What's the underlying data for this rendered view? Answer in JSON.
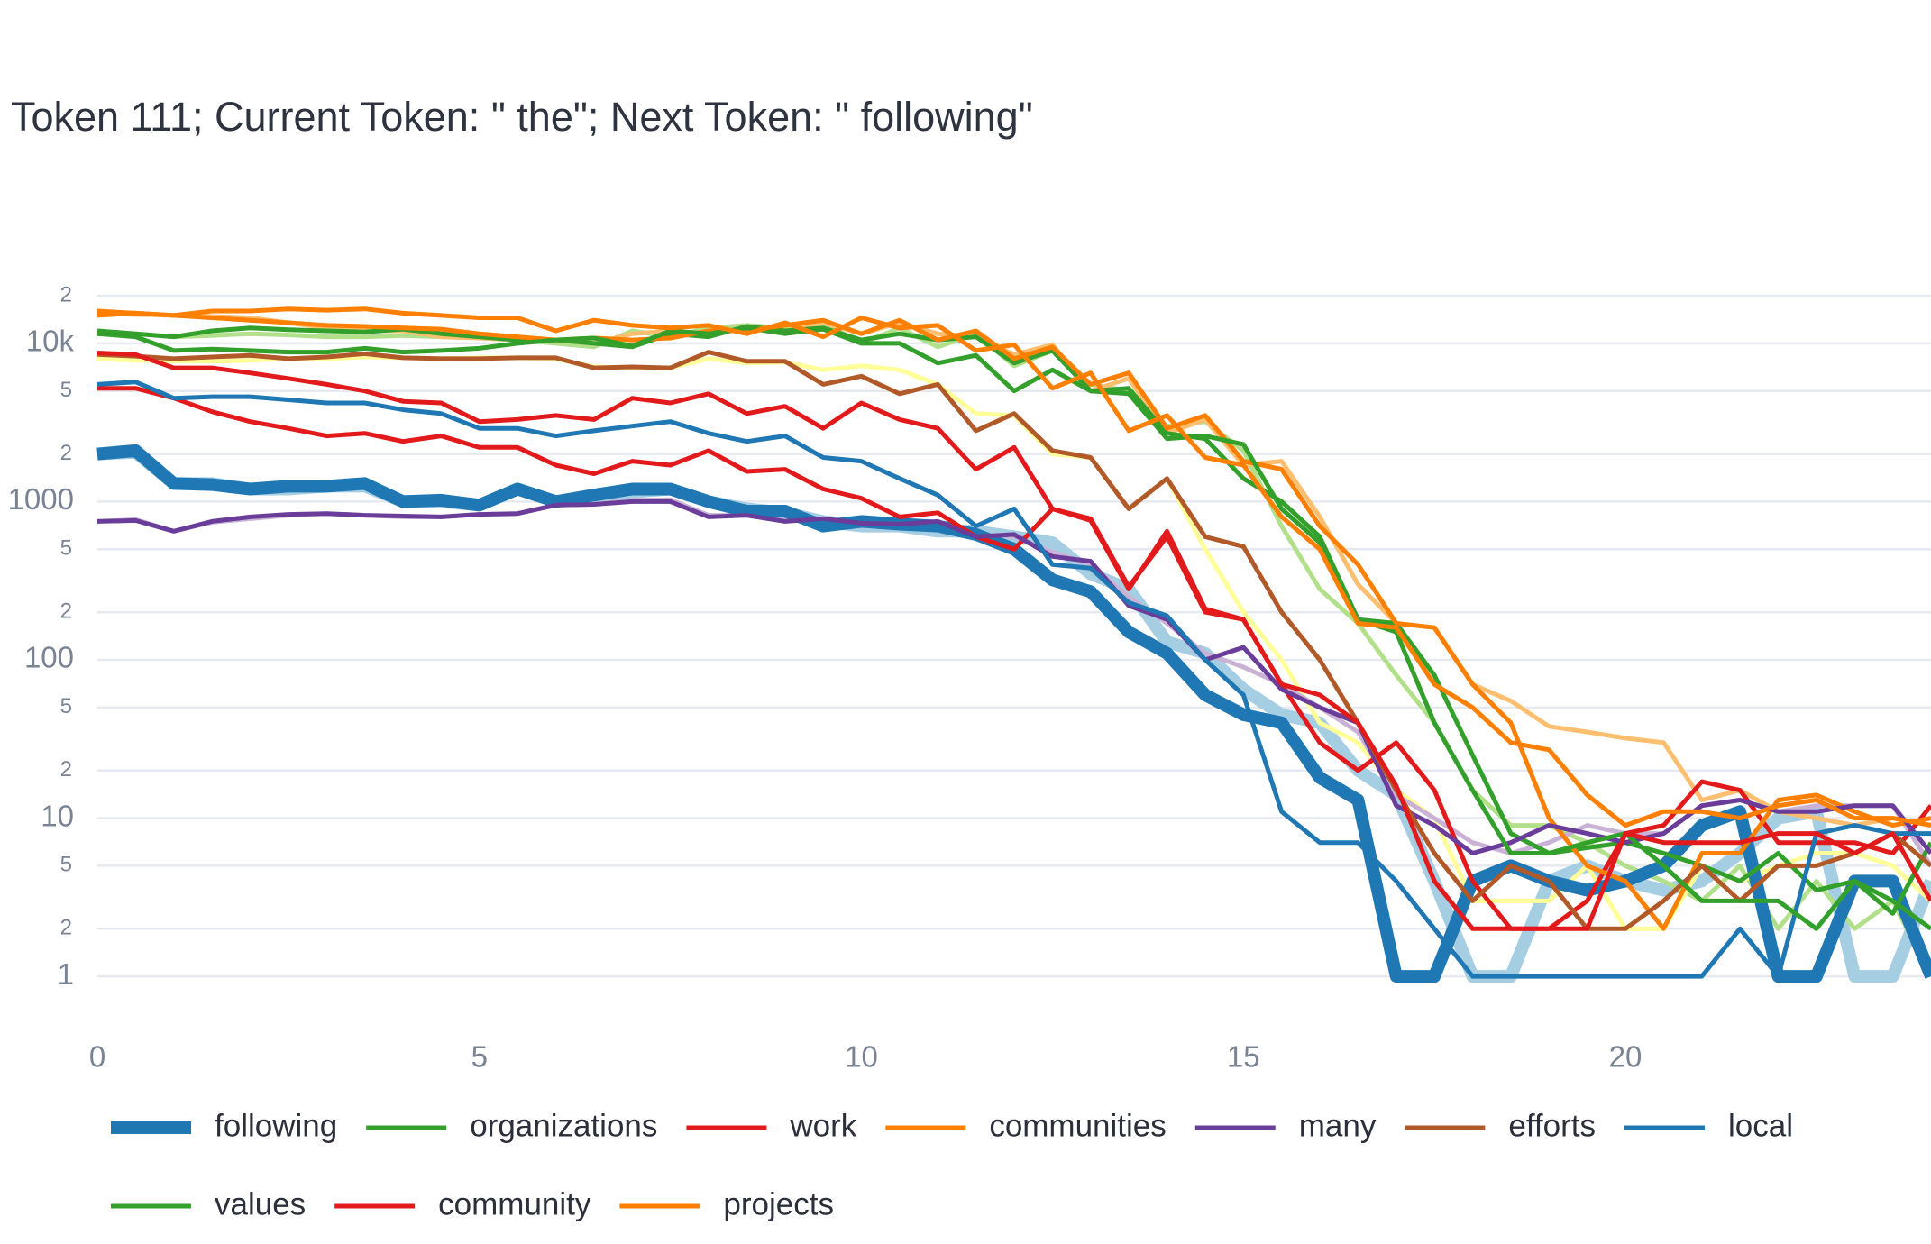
{
  "chart_data": {
    "type": "line",
    "title": "Token 111; Current Token: \" the\"; Next Token: \" following\"",
    "log_y": true,
    "grid": true,
    "xlim": [
      0,
      24
    ],
    "xticks": [
      0,
      5,
      10,
      15,
      20
    ],
    "ylim": [
      0.45,
      25000
    ],
    "yticks": [
      1,
      2,
      5,
      10,
      {
        "value": 20,
        "label": "2"
      },
      {
        "value": 50,
        "label": "5"
      },
      100,
      {
        "value": 200,
        "label": "2"
      },
      {
        "value": 500,
        "label": "5"
      },
      1000,
      {
        "value": 2000,
        "label": "2"
      },
      {
        "value": 5000,
        "label": "5"
      },
      {
        "value": 10000,
        "label": "10k"
      },
      {
        "value": 20000,
        "label": "2"
      }
    ],
    "x": [
      0,
      0.5,
      1,
      1.5,
      2,
      2.5,
      3,
      3.5,
      4,
      4.5,
      5,
      5.5,
      6,
      6.5,
      7,
      7.5,
      8,
      8.5,
      9,
      9.5,
      10,
      10.5,
      11,
      11.5,
      12,
      12.5,
      13,
      13.5,
      14,
      14.5,
      15,
      15.5,
      16,
      16.5,
      17,
      17.5,
      18,
      18.5,
      19,
      19.5,
      20,
      20.5,
      21,
      21.5,
      22,
      22.5,
      23,
      23.5,
      24
    ],
    "series": [
      {
        "color": "#a6cee3",
        "emphasis": true,
        "values": [
          2000,
          2050,
          1300,
          1300,
          1200,
          1200,
          1250,
          1250,
          1000,
          1000,
          950,
          1200,
          1000,
          1050,
          1150,
          1200,
          1000,
          900,
          850,
          750,
          700,
          700,
          650,
          650,
          600,
          550,
          350,
          280,
          130,
          110,
          65,
          45,
          40,
          20,
          14,
          4,
          1,
          1,
          4,
          5,
          4,
          3.5,
          4,
          6,
          10,
          11,
          1,
          1,
          4
        ]
      },
      {
        "color": "#b2df8a",
        "values": [
          11500,
          11500,
          11000,
          11200,
          11500,
          11300,
          11000,
          11000,
          11200,
          11000,
          10800,
          10500,
          10000,
          9500,
          12000,
          11000,
          12500,
          13000,
          12500,
          13500,
          10000,
          12500,
          9500,
          11500,
          7200,
          9000,
          5500,
          5000,
          3000,
          3200,
          2100,
          700,
          280,
          170,
          80,
          40,
          15,
          9,
          9,
          7,
          5,
          4,
          3,
          5,
          2,
          4,
          2,
          3,
          1
        ]
      },
      {
        "color": "#fdbf6f",
        "values": [
          15500,
          15200,
          15000,
          14800,
          14500,
          13500,
          12500,
          12000,
          12000,
          11000,
          10800,
          10500,
          10500,
          10000,
          11500,
          12000,
          11500,
          12500,
          12000,
          13500,
          11500,
          13500,
          11500,
          11000,
          8500,
          9800,
          5000,
          6000,
          2700,
          3300,
          1700,
          1800,
          800,
          300,
          170,
          160,
          70,
          55,
          38,
          35,
          32,
          30,
          13,
          15,
          11,
          10,
          9,
          10,
          9
        ]
      },
      {
        "color": "#ffff99",
        "values": [
          8000,
          7800,
          7700,
          7700,
          7800,
          8000,
          8000,
          8200,
          8100,
          8000,
          8100,
          8100,
          8000,
          7100,
          7000,
          7000,
          8000,
          7500,
          7600,
          6800,
          7200,
          6800,
          5500,
          3600,
          3500,
          2000,
          1900,
          900,
          1400,
          500,
          200,
          100,
          40,
          30,
          15,
          10,
          3,
          3,
          3,
          5,
          2,
          2,
          5,
          4,
          5,
          6,
          6,
          5,
          3
        ]
      },
      {
        "color": "#cab2d6",
        "values": [
          750,
          770,
          650,
          740,
          780,
          820,
          840,
          820,
          800,
          800,
          830,
          840,
          950,
          960,
          1020,
          1030,
          820,
          820,
          760,
          780,
          720,
          700,
          700,
          620,
          600,
          480,
          400,
          250,
          170,
          110,
          90,
          70,
          50,
          35,
          14,
          10,
          7,
          6,
          7,
          9,
          8,
          8,
          12,
          13,
          11,
          12,
          12,
          12,
          5
        ]
      },
      {
        "name": "following",
        "color": "#1f78b4",
        "emphasis": true,
        "values": [
          2000,
          2100,
          1300,
          1280,
          1200,
          1250,
          1250,
          1300,
          1000,
          1020,
          950,
          1200,
          1000,
          1100,
          1200,
          1200,
          1000,
          870,
          870,
          700,
          750,
          720,
          700,
          620,
          500,
          320,
          270,
          150,
          110,
          60,
          45,
          40,
          18,
          13,
          1,
          1,
          4,
          5,
          4,
          3.5,
          4,
          5,
          9,
          11,
          1,
          1,
          4,
          4,
          1
        ]
      },
      {
        "name": "organizations",
        "color": "#33a02c",
        "values": [
          12000,
          11500,
          11000,
          12000,
          12500,
          12200,
          12000,
          11800,
          12300,
          11500,
          11000,
          10500,
          10500,
          10000,
          9500,
          11500,
          11000,
          12800,
          12000,
          12500,
          10500,
          11500,
          10500,
          11000,
          7500,
          9000,
          5000,
          5200,
          2700,
          2500,
          1400,
          1000,
          600,
          180,
          170,
          80,
          25,
          8,
          6,
          6.5,
          7,
          6,
          5,
          4,
          6,
          3.5,
          4,
          2.5,
          7
        ]
      },
      {
        "name": "work",
        "color": "#e31a1c",
        "values": [
          5200,
          5200,
          4500,
          3700,
          3200,
          2900,
          2600,
          2700,
          2400,
          2600,
          2200,
          2200,
          1700,
          1500,
          1800,
          1700,
          2100,
          1550,
          1600,
          1200,
          1050,
          800,
          850,
          600,
          500,
          900,
          780,
          290,
          600,
          200,
          180,
          70,
          30,
          20,
          30,
          15,
          4,
          2,
          2,
          3,
          8,
          9,
          17,
          15,
          7,
          7,
          7,
          6,
          12
        ]
      },
      {
        "name": "communities",
        "color": "#ff7f00",
        "values": [
          16000,
          15500,
          15000,
          14500,
          14000,
          13500,
          13000,
          12800,
          12500,
          12300,
          11500,
          11000,
          10500,
          10800,
          10500,
          10800,
          12000,
          12000,
          13000,
          14000,
          11500,
          14000,
          10500,
          12000,
          8000,
          9500,
          5500,
          6500,
          2900,
          3500,
          1800,
          1600,
          700,
          400,
          170,
          160,
          70,
          40,
          10,
          5,
          4,
          2,
          6,
          6,
          13,
          14,
          11,
          9,
          10
        ]
      },
      {
        "name": "many",
        "color": "#6a3d9a",
        "values": [
          750,
          760,
          650,
          750,
          800,
          830,
          840,
          820,
          810,
          800,
          830,
          840,
          950,
          960,
          1000,
          1000,
          800,
          820,
          750,
          780,
          730,
          720,
          750,
          600,
          620,
          450,
          420,
          220,
          180,
          100,
          120,
          65,
          50,
          40,
          12,
          9,
          6,
          7,
          9,
          8,
          7,
          8,
          12,
          13,
          11,
          11,
          12,
          12,
          6
        ]
      },
      {
        "name": "efforts",
        "color": "#b15928",
        "values": [
          8500,
          8300,
          8000,
          8200,
          8400,
          8000,
          8200,
          8600,
          8100,
          8000,
          8000,
          8100,
          8100,
          7000,
          7100,
          7000,
          8800,
          7700,
          7700,
          5500,
          6200,
          4800,
          5500,
          2800,
          3600,
          2100,
          1900,
          900,
          1400,
          600,
          520,
          200,
          100,
          40,
          15,
          6,
          3,
          5,
          4,
          2,
          2,
          3,
          5,
          3,
          5,
          5,
          6,
          8,
          5
        ]
      },
      {
        "name": "local",
        "color": "#1f78b4",
        "values": [
          5500,
          5700,
          4500,
          4600,
          4600,
          4400,
          4200,
          4200,
          3800,
          3600,
          2900,
          2900,
          2600,
          2800,
          3000,
          3200,
          2700,
          2400,
          2600,
          1900,
          1800,
          1400,
          1100,
          700,
          900,
          400,
          380,
          230,
          190,
          100,
          60,
          11,
          7,
          7,
          4,
          2,
          1,
          1,
          1,
          1,
          1,
          1,
          1,
          2,
          1,
          8,
          9,
          8,
          8
        ]
      },
      {
        "name": "values",
        "color": "#33a02c",
        "values": [
          11500,
          11000,
          9000,
          9200,
          9000,
          8800,
          8800,
          9300,
          8800,
          9000,
          9300,
          10000,
          10500,
          10800,
          9600,
          12000,
          11500,
          12500,
          11500,
          12300,
          10000,
          10000,
          7500,
          8400,
          5000,
          6800,
          5000,
          4800,
          2500,
          2600,
          2300,
          900,
          550,
          180,
          150,
          40,
          15,
          6,
          6,
          7,
          8,
          5,
          3,
          3,
          3,
          2,
          4,
          3,
          2
        ]
      },
      {
        "name": "community",
        "color": "#e31a1c",
        "values": [
          8700,
          8500,
          7000,
          7000,
          6500,
          6000,
          5500,
          5000,
          4300,
          4200,
          3200,
          3300,
          3500,
          3300,
          4500,
          4200,
          4800,
          3600,
          4000,
          2900,
          4200,
          3300,
          2900,
          1600,
          2200,
          900,
          760,
          280,
          650,
          210,
          180,
          70,
          60,
          40,
          16,
          4,
          2,
          2,
          2,
          2,
          8,
          7,
          7,
          7,
          8,
          8,
          6,
          8,
          3
        ]
      },
      {
        "name": "projects",
        "color": "#ff7f00",
        "values": [
          15000,
          15500,
          15000,
          16000,
          16000,
          16500,
          16200,
          16500,
          15500,
          15000,
          14500,
          14500,
          12000,
          14000,
          13000,
          12500,
          13000,
          11500,
          13500,
          11000,
          14500,
          12500,
          13000,
          9000,
          9800,
          5200,
          6500,
          2800,
          3500,
          1900,
          1700,
          800,
          500,
          170,
          160,
          70,
          50,
          30,
          27,
          14,
          9,
          11,
          11,
          10,
          12,
          13,
          10,
          10,
          9
        ]
      }
    ]
  }
}
